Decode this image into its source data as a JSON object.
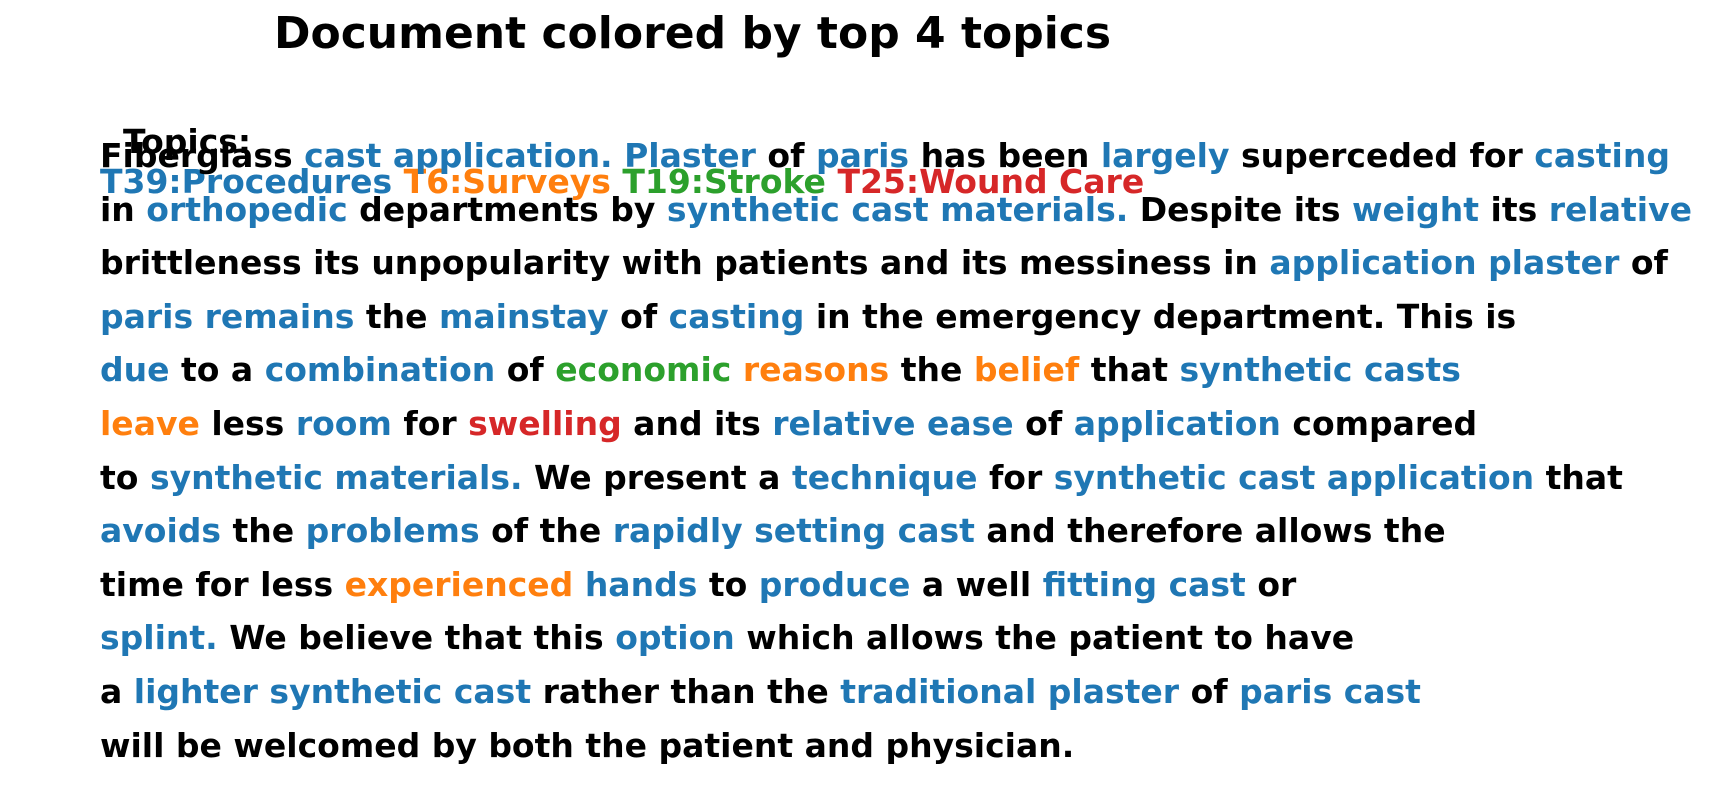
{
  "title": "Document colored by top 4 topics",
  "colors": {
    "text": "#000000",
    "T39": "#1f77b4",
    "T6": "#ff7f0e",
    "T19": "#2ca02c",
    "T25": "#d62728"
  },
  "topics_prefix": "Topics: ",
  "topics": [
    {
      "id": "T39",
      "label": "T39:Procedures"
    },
    {
      "id": "T6",
      "label": "T6:Surveys"
    },
    {
      "id": "T19",
      "label": "T19:Stroke"
    },
    {
      "id": "T25",
      "label": "T25:Wound Care"
    }
  ],
  "document_lines": [
    [
      {
        "t": "Fiberglass ",
        "c": "text"
      },
      {
        "t": "cast application. Plaster",
        "c": "T39"
      },
      {
        "t": " of ",
        "c": "text"
      },
      {
        "t": "paris",
        "c": "T39"
      },
      {
        "t": " has been ",
        "c": "text"
      },
      {
        "t": "largely",
        "c": "T39"
      },
      {
        "t": " superceded for ",
        "c": "text"
      },
      {
        "t": "casting",
        "c": "T39"
      }
    ],
    [
      {
        "t": "in ",
        "c": "text"
      },
      {
        "t": "orthopedic",
        "c": "T39"
      },
      {
        "t": " departments by ",
        "c": "text"
      },
      {
        "t": "synthetic cast materials.",
        "c": "T39"
      },
      {
        "t": " Despite its ",
        "c": "text"
      },
      {
        "t": "weight",
        "c": "T39"
      },
      {
        "t": " its ",
        "c": "text"
      },
      {
        "t": "relative",
        "c": "T39"
      }
    ],
    [
      {
        "t": "brittleness its unpopularity with patients and its messiness in ",
        "c": "text"
      },
      {
        "t": "application plaster",
        "c": "T39"
      },
      {
        "t": " of",
        "c": "text"
      }
    ],
    [
      {
        "t": "paris remains",
        "c": "T39"
      },
      {
        "t": " the ",
        "c": "text"
      },
      {
        "t": "mainstay",
        "c": "T39"
      },
      {
        "t": " of ",
        "c": "text"
      },
      {
        "t": "casting",
        "c": "T39"
      },
      {
        "t": " in the emergency department. This is",
        "c": "text"
      }
    ],
    [
      {
        "t": "due",
        "c": "T39"
      },
      {
        "t": " to a ",
        "c": "text"
      },
      {
        "t": "combination",
        "c": "T39"
      },
      {
        "t": " of ",
        "c": "text"
      },
      {
        "t": "economic",
        "c": "T19"
      },
      {
        "t": " ",
        "c": "text"
      },
      {
        "t": "reasons",
        "c": "T6"
      },
      {
        "t": " the ",
        "c": "text"
      },
      {
        "t": "belief",
        "c": "T6"
      },
      {
        "t": " that ",
        "c": "text"
      },
      {
        "t": "synthetic casts",
        "c": "T39"
      }
    ],
    [
      {
        "t": "leave",
        "c": "T6"
      },
      {
        "t": " less ",
        "c": "text"
      },
      {
        "t": "room",
        "c": "T39"
      },
      {
        "t": " for ",
        "c": "text"
      },
      {
        "t": "swelling",
        "c": "T25"
      },
      {
        "t": " and its ",
        "c": "text"
      },
      {
        "t": "relative ease",
        "c": "T39"
      },
      {
        "t": " of ",
        "c": "text"
      },
      {
        "t": "application",
        "c": "T39"
      },
      {
        "t": " compared",
        "c": "text"
      }
    ],
    [
      {
        "t": "to ",
        "c": "text"
      },
      {
        "t": "synthetic materials.",
        "c": "T39"
      },
      {
        "t": " We present a ",
        "c": "text"
      },
      {
        "t": "technique",
        "c": "T39"
      },
      {
        "t": " for ",
        "c": "text"
      },
      {
        "t": "synthetic cast application",
        "c": "T39"
      },
      {
        "t": " that",
        "c": "text"
      }
    ],
    [
      {
        "t": "avoids",
        "c": "T39"
      },
      {
        "t": " the ",
        "c": "text"
      },
      {
        "t": "problems",
        "c": "T39"
      },
      {
        "t": " of the ",
        "c": "text"
      },
      {
        "t": "rapidly setting cast",
        "c": "T39"
      },
      {
        "t": " and therefore allows the",
        "c": "text"
      }
    ],
    [
      {
        "t": "time for less ",
        "c": "text"
      },
      {
        "t": "experienced",
        "c": "T6"
      },
      {
        "t": " ",
        "c": "text"
      },
      {
        "t": "hands",
        "c": "T39"
      },
      {
        "t": " to ",
        "c": "text"
      },
      {
        "t": "produce",
        "c": "T39"
      },
      {
        "t": " a well ",
        "c": "text"
      },
      {
        "t": "fitting cast",
        "c": "T39"
      },
      {
        "t": " or",
        "c": "text"
      }
    ],
    [
      {
        "t": "splint.",
        "c": "T39"
      },
      {
        "t": " We believe that this ",
        "c": "text"
      },
      {
        "t": "option",
        "c": "T39"
      },
      {
        "t": " which allows the patient to have",
        "c": "text"
      }
    ],
    [
      {
        "t": "a ",
        "c": "text"
      },
      {
        "t": "lighter synthetic cast",
        "c": "T39"
      },
      {
        "t": " rather than the ",
        "c": "text"
      },
      {
        "t": "traditional plaster",
        "c": "T39"
      },
      {
        "t": " of ",
        "c": "text"
      },
      {
        "t": "paris cast",
        "c": "T39"
      }
    ],
    [
      {
        "t": "will be welcomed by both the patient and physician.",
        "c": "text"
      }
    ]
  ]
}
